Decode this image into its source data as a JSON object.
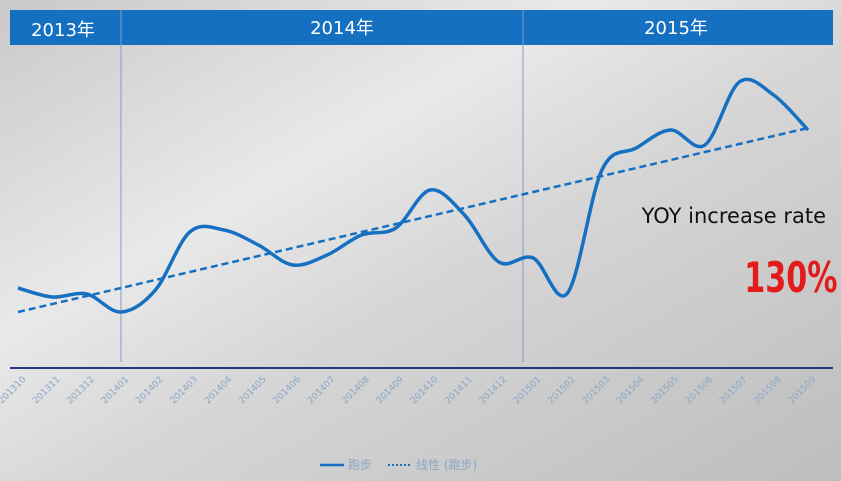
{
  "chart_data": {
    "type": "line",
    "year_labels": [
      "2013年",
      "2014年",
      "2015年"
    ],
    "categories": [
      "201310",
      "201311",
      "201312",
      "201401",
      "201402",
      "201403",
      "201404",
      "201405",
      "201406",
      "201407",
      "201408",
      "201409",
      "201410",
      "201411",
      "201412",
      "201501",
      "201502",
      "201503",
      "201504",
      "201505",
      "201506",
      "201507",
      "201508",
      "201509"
    ],
    "series": [
      {
        "name": "跑步",
        "color": "#1570c2",
        "style": "solid",
        "values": [
          82,
          73,
          76,
          58,
          80,
          138,
          140,
          125,
          105,
          115,
          135,
          142,
          180,
          155,
          108,
          112,
          77,
          200,
          222,
          240,
          225,
          288,
          275,
          240
        ]
      },
      {
        "name": "线性 (跑步)",
        "color": "#1570c2",
        "style": "dashed",
        "values": [
          58,
          66,
          74,
          82,
          90,
          98,
          106,
          114,
          122,
          130,
          138,
          146,
          154,
          162,
          170,
          178,
          186,
          194,
          202,
          210,
          218,
          226,
          234,
          242
        ]
      }
    ],
    "annotation": "YOY increase rate",
    "annotation_value": "130%"
  }
}
